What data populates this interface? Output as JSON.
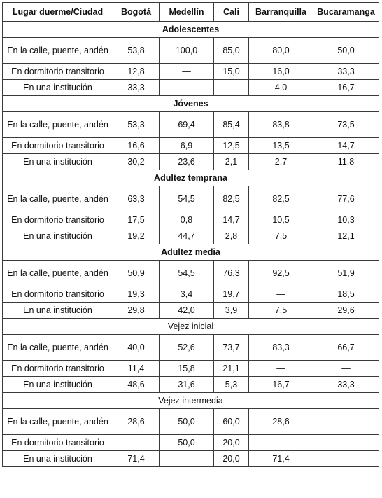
{
  "headers": [
    "Lugar duerme/Ciudad",
    "Bogotá",
    "Medellín",
    "Cali",
    "Barranquilla",
    "Bucaramanga"
  ],
  "groups": [
    {
      "title": "Adolescentes",
      "bold": true,
      "rows": [
        {
          "label": "En la calle, puente, andén",
          "values": [
            "53,8",
            "100,0",
            "85,0",
            "80,0",
            "50,0"
          ]
        },
        {
          "label": "En dormitorio transitorio",
          "values": [
            "12,8",
            "—",
            "15,0",
            "16,0",
            "33,3"
          ]
        },
        {
          "label": "En una institución",
          "values": [
            "33,3",
            "—",
            "—",
            "4,0",
            "16,7"
          ]
        }
      ]
    },
    {
      "title": "Jóvenes",
      "bold": true,
      "rows": [
        {
          "label": "En la calle, puente, andén",
          "values": [
            "53,3",
            "69,4",
            "85,4",
            "83,8",
            "73,5"
          ]
        },
        {
          "label": "En dormitorio transitorio",
          "values": [
            "16,6",
            "6,9",
            "12,5",
            "13,5",
            "14,7"
          ]
        },
        {
          "label": "En una institución",
          "values": [
            "30,2",
            "23,6",
            "2,1",
            "2,7",
            "11,8"
          ]
        }
      ]
    },
    {
      "title": "Adultez temprana",
      "bold": true,
      "rows": [
        {
          "label": "En la calle, puente, andén",
          "values": [
            "63,3",
            "54,5",
            "82,5",
            "82,5",
            "77,6"
          ]
        },
        {
          "label": "En dormitorio transitorio",
          "values": [
            "17,5",
            "0,8",
            "14,7",
            "10,5",
            "10,3"
          ]
        },
        {
          "label": "En una institución",
          "values": [
            "19,2",
            "44,7",
            "2,8",
            "7,5",
            "12,1"
          ]
        }
      ]
    },
    {
      "title": "Adultez media",
      "bold": true,
      "rows": [
        {
          "label": "En la calle, puente, andén",
          "values": [
            "50,9",
            "54,5",
            "76,3",
            "92,5",
            "51,9"
          ]
        },
        {
          "label": "En dormitorio transitorio",
          "values": [
            "19,3",
            "3,4",
            "19,7",
            "—",
            "18,5"
          ]
        },
        {
          "label": "En una institución",
          "values": [
            "29,8",
            "42,0",
            "3,9",
            "7,5",
            "29,6"
          ]
        }
      ]
    },
    {
      "title": "Vejez inicial",
      "bold": false,
      "rows": [
        {
          "label": "En la calle, puente, andén",
          "values": [
            "40,0",
            "52,6",
            "73,7",
            "83,3",
            "66,7"
          ]
        },
        {
          "label": "En dormitorio transitorio",
          "values": [
            "11,4",
            "15,8",
            "21,1",
            "—",
            "—"
          ]
        },
        {
          "label": "En una institución",
          "values": [
            "48,6",
            "31,6",
            "5,3",
            "16,7",
            "33,3"
          ]
        }
      ]
    },
    {
      "title": "Vejez intermedia",
      "bold": false,
      "rows": [
        {
          "label": "En la calle, puente, andén",
          "values": [
            "28,6",
            "50,0",
            "60,0",
            "28,6",
            "—"
          ]
        },
        {
          "label": "En dormitorio transitorio",
          "values": [
            "—",
            "50,0",
            "20,0",
            "—",
            "—"
          ]
        },
        {
          "label": "En una institución",
          "values": [
            "71,4",
            "—",
            "20,0",
            "71,4",
            "—"
          ]
        }
      ]
    }
  ]
}
